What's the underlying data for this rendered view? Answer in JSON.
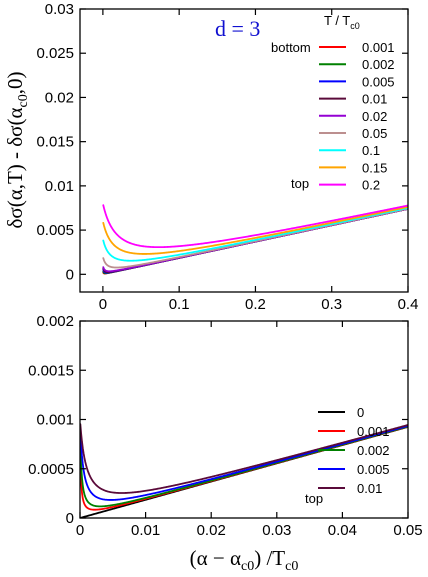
{
  "chart_data": [
    {
      "type": "line",
      "panel": "top",
      "annotation": {
        "text": "d = 3",
        "color": "#1010d0"
      },
      "ylabel": "δσ(α,T) - δσ(α_c0,0)",
      "xlim": [
        -0.03,
        0.4
      ],
      "ylim": [
        -0.002,
        0.03
      ],
      "x_ticks": [
        "0",
        "0.1",
        "0.2",
        "0.3",
        "0.4"
      ],
      "y_ticks": [
        "0",
        "0.005",
        "0.01",
        "0.015",
        "0.02",
        "0.025",
        "0.03"
      ],
      "legend": {
        "title": "T / T",
        "title_sub": "c0",
        "placement": "top-right",
        "bottom_note": "bottom",
        "top_note": "top"
      },
      "series": [
        {
          "name": "0.001",
          "color": "#ff0000",
          "T": 0.001
        },
        {
          "name": "0.002",
          "color": "#008000",
          "T": 0.002
        },
        {
          "name": "0.005",
          "color": "#0000ff",
          "T": 0.005
        },
        {
          "name": "0.01",
          "color": "#5a0a3a",
          "T": 0.01
        },
        {
          "name": "0.02",
          "color": "#9400d3",
          "T": 0.02
        },
        {
          "name": "0.05",
          "color": "#bc8f8f",
          "T": 0.05
        },
        {
          "name": "0.1",
          "color": "#00ffff",
          "T": 0.1
        },
        {
          "name": "0.15",
          "color": "#ffa500",
          "T": 0.15
        },
        {
          "name": "0.2",
          "color": "#ff00ff",
          "T": 0.2
        }
      ]
    },
    {
      "type": "line",
      "panel": "bottom",
      "xlabel": "(α − α_c0) /T_c0",
      "xlim": [
        0,
        0.05
      ],
      "ylim": [
        0,
        0.002
      ],
      "x_ticks": [
        "0",
        "0.01",
        "0.02",
        "0.03",
        "0.04",
        "0.05"
      ],
      "y_ticks": [
        "0",
        "0.0005",
        "0.001",
        "0.0015",
        "0.002"
      ],
      "legend": {
        "placement": "bottom-right",
        "top_note": "top"
      },
      "series": [
        {
          "name": "0",
          "color": "#000000",
          "T": 0
        },
        {
          "name": "0.001",
          "color": "#ff0000",
          "T": 0.001
        },
        {
          "name": "0.002",
          "color": "#008000",
          "T": 0.002
        },
        {
          "name": "0.005",
          "color": "#0000ff",
          "T": 0.005
        },
        {
          "name": "0.01",
          "color": "#5a0a3a",
          "T": 0.01
        }
      ]
    }
  ]
}
